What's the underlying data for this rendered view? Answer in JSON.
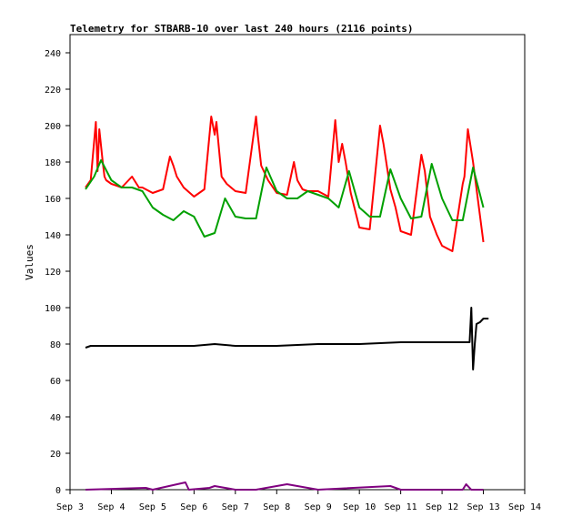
{
  "chart_data": {
    "type": "line",
    "title": "Telemetry for STBARB-10 over last 240 hours (2116 points)",
    "xlabel": "",
    "ylabel": "Values",
    "xlim": [
      "2015-09-03 00:00",
      "2015-09-14 00:00"
    ],
    "ylim": [
      0,
      250
    ],
    "x_tick_labels": [
      "Sep 3",
      "Sep 4",
      "Sep 5",
      "Sep 6",
      "Sep 7",
      "Sep 8",
      "Sep 9",
      "Sep 10",
      "Sep 11",
      "Sep 12",
      "Sep 13",
      "Sep 14"
    ],
    "y_ticks": [
      0,
      20,
      40,
      60,
      80,
      100,
      120,
      140,
      160,
      180,
      200,
      220,
      240
    ],
    "grid": false,
    "legend": "none",
    "series": [
      {
        "color": "#ff0000",
        "x": [
          "2015-09-03 09:00",
          "2015-09-03 12:00",
          "2015-09-03 15:00",
          "2015-09-03 16:00",
          "2015-09-03 17:00",
          "2015-09-03 19:00",
          "2015-09-03 20:00",
          "2015-09-03 21:00",
          "2015-09-04 00:00",
          "2015-09-04 06:00",
          "2015-09-04 12:00",
          "2015-09-04 16:00",
          "2015-09-04 18:00",
          "2015-09-04 20:00",
          "2015-09-05 00:00",
          "2015-09-05 06:00",
          "2015-09-05 10:00",
          "2015-09-05 12:00",
          "2015-09-05 14:00",
          "2015-09-05 18:00",
          "2015-09-06 00:00",
          "2015-09-06 06:00",
          "2015-09-06 10:00",
          "2015-09-06 12:00",
          "2015-09-06 13:00",
          "2015-09-06 16:00",
          "2015-09-06 19:00",
          "2015-09-07 00:00",
          "2015-09-07 06:00",
          "2015-09-07 12:00",
          "2015-09-07 13:00",
          "2015-09-07 15:00",
          "2015-09-07 19:00",
          "2015-09-08 00:00",
          "2015-09-08 06:00",
          "2015-09-08 10:00",
          "2015-09-08 12:00",
          "2015-09-08 15:00",
          "2015-09-08 18:00",
          "2015-09-09 00:00",
          "2015-09-09 06:00",
          "2015-09-09 10:00",
          "2015-09-09 12:00",
          "2015-09-09 14:00",
          "2015-09-09 16:00",
          "2015-09-09 19:00",
          "2015-09-10 00:00",
          "2015-09-10 06:00",
          "2015-09-10 12:00",
          "2015-09-10 14:00",
          "2015-09-10 18:00",
          "2015-09-10 21:00",
          "2015-09-11 00:00",
          "2015-09-11 06:00",
          "2015-09-11 12:00",
          "2015-09-11 14:00",
          "2015-09-11 17:00",
          "2015-09-11 21:00",
          "2015-09-12 00:00",
          "2015-09-12 06:00",
          "2015-09-12 12:00",
          "2015-09-12 13:00",
          "2015-09-12 15:00",
          "2015-09-12 18:00",
          "2015-09-13 00:00"
        ],
        "y": [
          166,
          170,
          202,
          175,
          198,
          180,
          172,
          170,
          168,
          166,
          172,
          166,
          166,
          165,
          163,
          165,
          183,
          178,
          172,
          166,
          161,
          165,
          205,
          195,
          202,
          172,
          168,
          164,
          163,
          205,
          195,
          178,
          170,
          163,
          162,
          180,
          170,
          165,
          164,
          164,
          161,
          203,
          180,
          190,
          180,
          163,
          144,
          143,
          200,
          190,
          165,
          155,
          142,
          140,
          184,
          175,
          150,
          140,
          134,
          131,
          168,
          172,
          198,
          180,
          136
        ]
      },
      {
        "color": "#00a000",
        "x": [
          "2015-09-03 09:00",
          "2015-09-03 14:00",
          "2015-09-03 18:00",
          "2015-09-04 00:00",
          "2015-09-04 06:00",
          "2015-09-04 12:00",
          "2015-09-04 18:00",
          "2015-09-05 00:00",
          "2015-09-05 06:00",
          "2015-09-05 12:00",
          "2015-09-05 18:00",
          "2015-09-06 00:00",
          "2015-09-06 06:00",
          "2015-09-06 12:00",
          "2015-09-06 18:00",
          "2015-09-07 00:00",
          "2015-09-07 06:00",
          "2015-09-07 12:00",
          "2015-09-07 18:00",
          "2015-09-08 00:00",
          "2015-09-08 06:00",
          "2015-09-08 12:00",
          "2015-09-08 18:00",
          "2015-09-09 00:00",
          "2015-09-09 06:00",
          "2015-09-09 12:00",
          "2015-09-09 18:00",
          "2015-09-10 00:00",
          "2015-09-10 06:00",
          "2015-09-10 12:00",
          "2015-09-10 18:00",
          "2015-09-11 00:00",
          "2015-09-11 06:00",
          "2015-09-11 12:00",
          "2015-09-11 18:00",
          "2015-09-12 00:00",
          "2015-09-12 06:00",
          "2015-09-12 12:00",
          "2015-09-12 18:00",
          "2015-09-13 00:00"
        ],
        "y": [
          165,
          172,
          181,
          170,
          166,
          166,
          164,
          155,
          151,
          148,
          153,
          150,
          139,
          141,
          160,
          150,
          149,
          149,
          177,
          164,
          160,
          160,
          164,
          162,
          160,
          155,
          175,
          155,
          150,
          150,
          176,
          160,
          149,
          150,
          179,
          160,
          148,
          148,
          177,
          155
        ]
      },
      {
        "color": "#000000",
        "x": [
          "2015-09-03 09:00",
          "2015-09-03 12:00",
          "2015-09-04 00:00",
          "2015-09-05 00:00",
          "2015-09-06 00:00",
          "2015-09-06 12:00",
          "2015-09-07 00:00",
          "2015-09-08 00:00",
          "2015-09-09 00:00",
          "2015-09-10 00:00",
          "2015-09-11 00:00",
          "2015-09-12 00:00",
          "2015-09-12 16:00",
          "2015-09-12 17:00",
          "2015-09-12 18:00",
          "2015-09-12 19:00",
          "2015-09-12 20:00",
          "2015-09-12 22:00",
          "2015-09-13 00:00",
          "2015-09-13 03:00"
        ],
        "y": [
          78,
          79,
          79,
          79,
          79,
          80,
          79,
          79,
          80,
          80,
          81,
          81,
          81,
          100,
          66,
          80,
          91,
          92,
          94,
          94
        ]
      },
      {
        "color": "#800080",
        "x": [
          "2015-09-03 09:00",
          "2015-09-04 20:00",
          "2015-09-05 00:00",
          "2015-09-05 19:00",
          "2015-09-05 21:00",
          "2015-09-06 09:00",
          "2015-09-06 12:00",
          "2015-09-07 00:00",
          "2015-09-07 12:00",
          "2015-09-08 06:00",
          "2015-09-08 12:00",
          "2015-09-09 00:00",
          "2015-09-10 18:00",
          "2015-09-11 00:00",
          "2015-09-12 12:00",
          "2015-09-12 14:00",
          "2015-09-12 17:00",
          "2015-09-13 00:00"
        ],
        "y": [
          0,
          1,
          0,
          4,
          0,
          1,
          2,
          0,
          0,
          3,
          2,
          0,
          2,
          0,
          0,
          3,
          0,
          0
        ]
      }
    ]
  }
}
